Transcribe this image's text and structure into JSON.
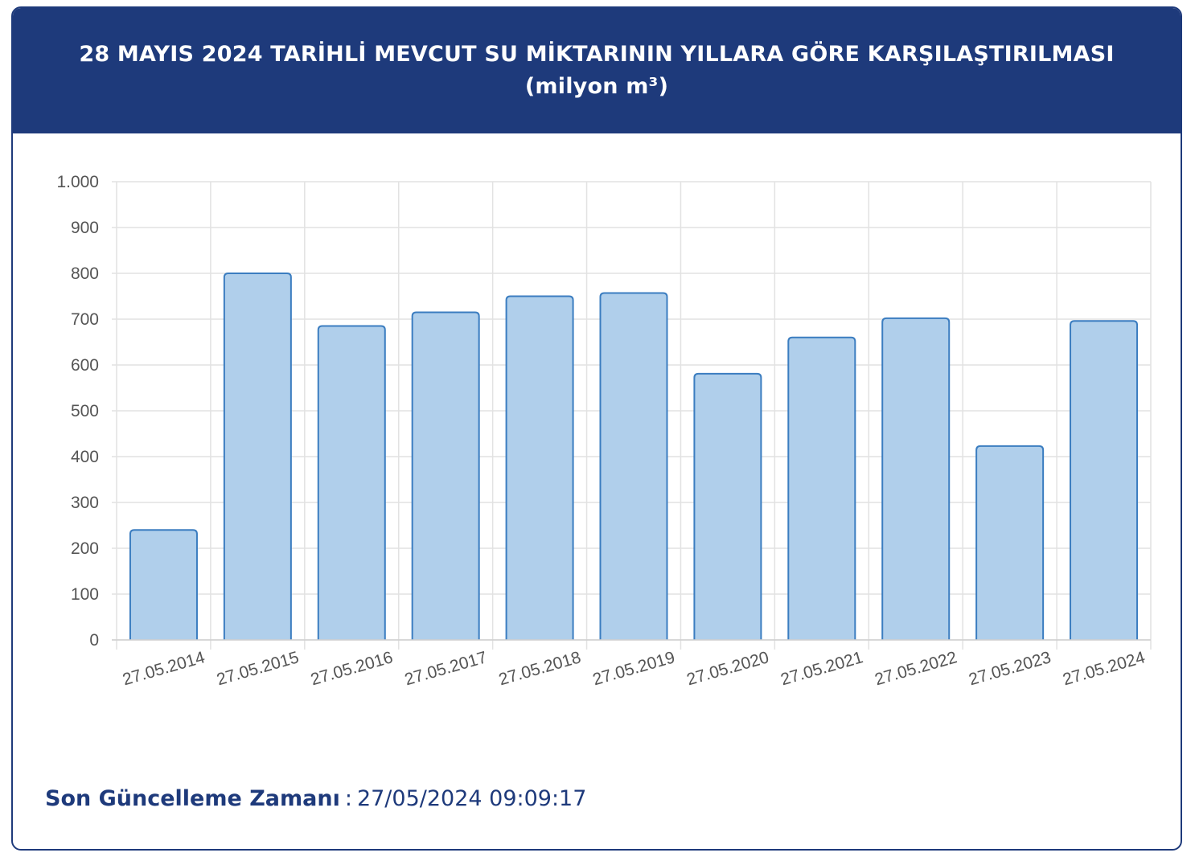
{
  "header": {
    "title": "28 MAYIS 2024 TARİHLİ MEVCUT SU MİKTARININ YILLARA GÖRE KARŞILAŞTIRILMASI (milyon m³)"
  },
  "footer": {
    "label": "Son Güncelleme Zamanı",
    "separator": ":",
    "value": "27/05/2024 09:09:17"
  },
  "colors": {
    "header_bg": "#1e3a7b",
    "bar_fill": "#b0cfeb",
    "bar_stroke": "#3b7dc0",
    "grid": "#e2e2e2",
    "tick_text": "#555555"
  },
  "chart_data": {
    "type": "bar",
    "categories": [
      "27.05.2014",
      "27.05.2015",
      "27.05.2016",
      "27.05.2017",
      "27.05.2018",
      "27.05.2019",
      "27.05.2020",
      "27.05.2021",
      "27.05.2022",
      "27.05.2023",
      "27.05.2024"
    ],
    "values": [
      240,
      800,
      685,
      715,
      750,
      757,
      581,
      660,
      702,
      423,
      696
    ],
    "ylim": [
      0,
      1000
    ],
    "yticks": [
      0,
      100,
      200,
      300,
      400,
      500,
      600,
      700,
      800,
      900,
      1000
    ],
    "ytick_labels": [
      "0",
      "100",
      "200",
      "300",
      "400",
      "500",
      "600",
      "700",
      "800",
      "900",
      "1.000"
    ],
    "grid": true,
    "legend": "none"
  }
}
